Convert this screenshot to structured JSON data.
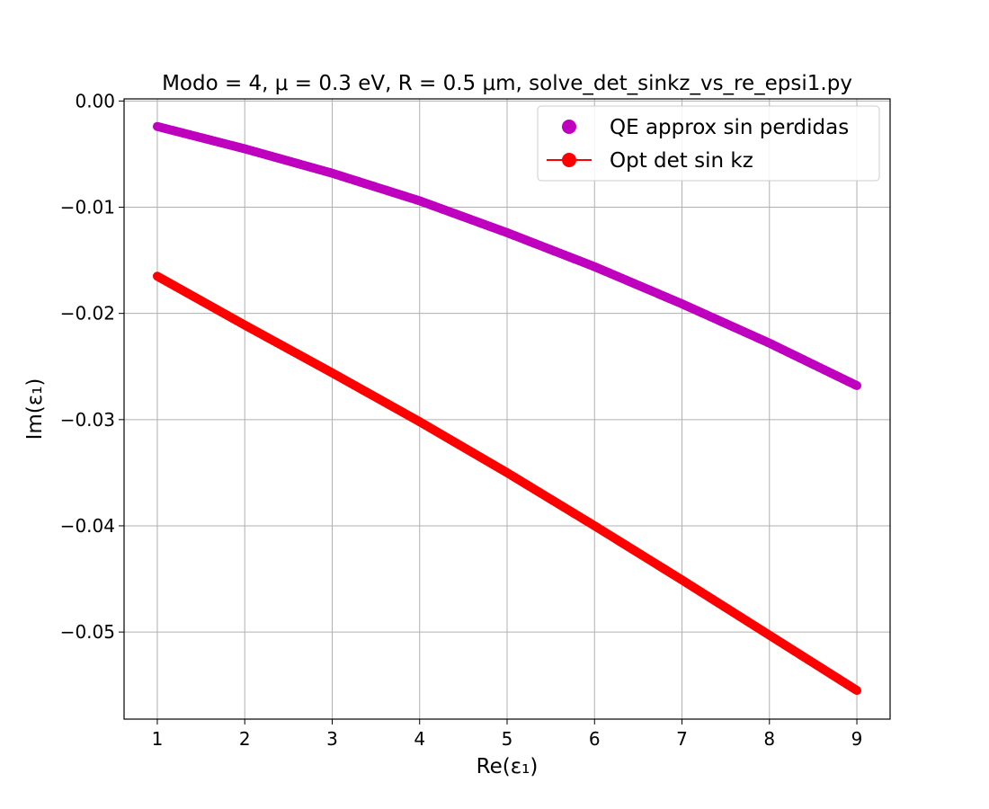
{
  "chart_data": {
    "type": "scatter",
    "title": "Modo = 4, μ = 0.3 eV, R = 0.5 μm, solve_det_sinkz_vs_re_epsi1.py",
    "xlabel": "Re(ε₁)",
    "ylabel": "Im(ε₁)",
    "xlim": [
      0.62,
      9.38
    ],
    "ylim": [
      -0.0582,
      0.0002
    ],
    "x_ticks": [
      1,
      2,
      3,
      4,
      5,
      6,
      7,
      8,
      9
    ],
    "x_tick_labels": [
      "1",
      "2",
      "3",
      "4",
      "5",
      "6",
      "7",
      "8",
      "9"
    ],
    "y_ticks": [
      0.0,
      -0.01,
      -0.02,
      -0.03,
      -0.04,
      -0.05
    ],
    "y_tick_labels": [
      "0.00",
      "−0.01",
      "−0.02",
      "−0.03",
      "−0.04",
      "−0.05"
    ],
    "grid": true,
    "legend_position": "top-right",
    "series": [
      {
        "name": "QE approx sin perdidas",
        "color": "#bf00bf",
        "marker": "circle",
        "line": false,
        "x": [
          1,
          2,
          3,
          4,
          5,
          6,
          7,
          8,
          9
        ],
        "y": [
          -0.0024,
          -0.0045,
          -0.0068,
          -0.0094,
          -0.0124,
          -0.0156,
          -0.0191,
          -0.0228,
          -0.0268
        ]
      },
      {
        "name": "Opt det sin kz",
        "color": "#ff0000",
        "marker": "circle",
        "line": true,
        "x": [
          1,
          2,
          3,
          4,
          5,
          6,
          7,
          8,
          9
        ],
        "y": [
          -0.0165,
          -0.0211,
          -0.0256,
          -0.0302,
          -0.035,
          -0.04,
          -0.0451,
          -0.0503,
          -0.0555
        ]
      }
    ]
  }
}
